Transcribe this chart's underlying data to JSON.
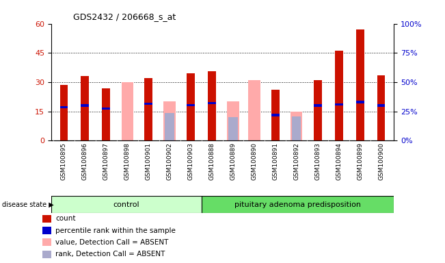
{
  "title": "GDS2432 / 206668_s_at",
  "samples": [
    "GSM100895",
    "GSM100896",
    "GSM100897",
    "GSM100898",
    "GSM100901",
    "GSM100902",
    "GSM100903",
    "GSM100888",
    "GSM100889",
    "GSM100890",
    "GSM100891",
    "GSM100892",
    "GSM100893",
    "GSM100894",
    "GSM100899",
    "GSM100900"
  ],
  "count": [
    28.5,
    33.0,
    27.0,
    null,
    32.0,
    null,
    34.5,
    35.5,
    null,
    null,
    26.0,
    null,
    31.0,
    46.0,
    57.0,
    33.5
  ],
  "percentile_rank": [
    28.5,
    30.0,
    27.5,
    null,
    31.5,
    null,
    30.5,
    32.0,
    null,
    null,
    22.0,
    null,
    30.0,
    31.0,
    33.0,
    30.0
  ],
  "value_absent": [
    null,
    null,
    null,
    30.0,
    null,
    20.0,
    null,
    null,
    20.0,
    31.0,
    null,
    15.0,
    null,
    null,
    null,
    null
  ],
  "rank_absent": [
    null,
    null,
    null,
    null,
    null,
    23.5,
    null,
    null,
    20.0,
    null,
    null,
    21.0,
    null,
    null,
    null,
    null
  ],
  "group_labels": [
    "control",
    "pituitary adenoma predisposition"
  ],
  "group_split": 7,
  "n_samples": 16,
  "ylim_left": [
    0,
    60
  ],
  "ylim_right": [
    0,
    100
  ],
  "yticks_left": [
    0,
    15,
    30,
    45,
    60
  ],
  "yticks_right": [
    0,
    25,
    50,
    75,
    100
  ],
  "ytick_labels_right": [
    "0%",
    "25%",
    "50%",
    "75%",
    "100%"
  ],
  "color_count": "#cc1100",
  "color_percentile": "#0000cc",
  "color_value_absent": "#ffaaaa",
  "color_rank_absent": "#aaaacc",
  "color_group_control": "#ccffcc",
  "color_group_disease": "#66dd66",
  "color_tickbg": "#d8d8d8",
  "bar_width": 0.38,
  "absent_bar_width": 0.38,
  "legend_items": [
    {
      "color": "#cc1100",
      "label": "count"
    },
    {
      "color": "#0000cc",
      "label": "percentile rank within the sample"
    },
    {
      "color": "#ffaaaa",
      "label": "value, Detection Call = ABSENT"
    },
    {
      "color": "#aaaacc",
      "label": "rank, Detection Call = ABSENT"
    }
  ]
}
